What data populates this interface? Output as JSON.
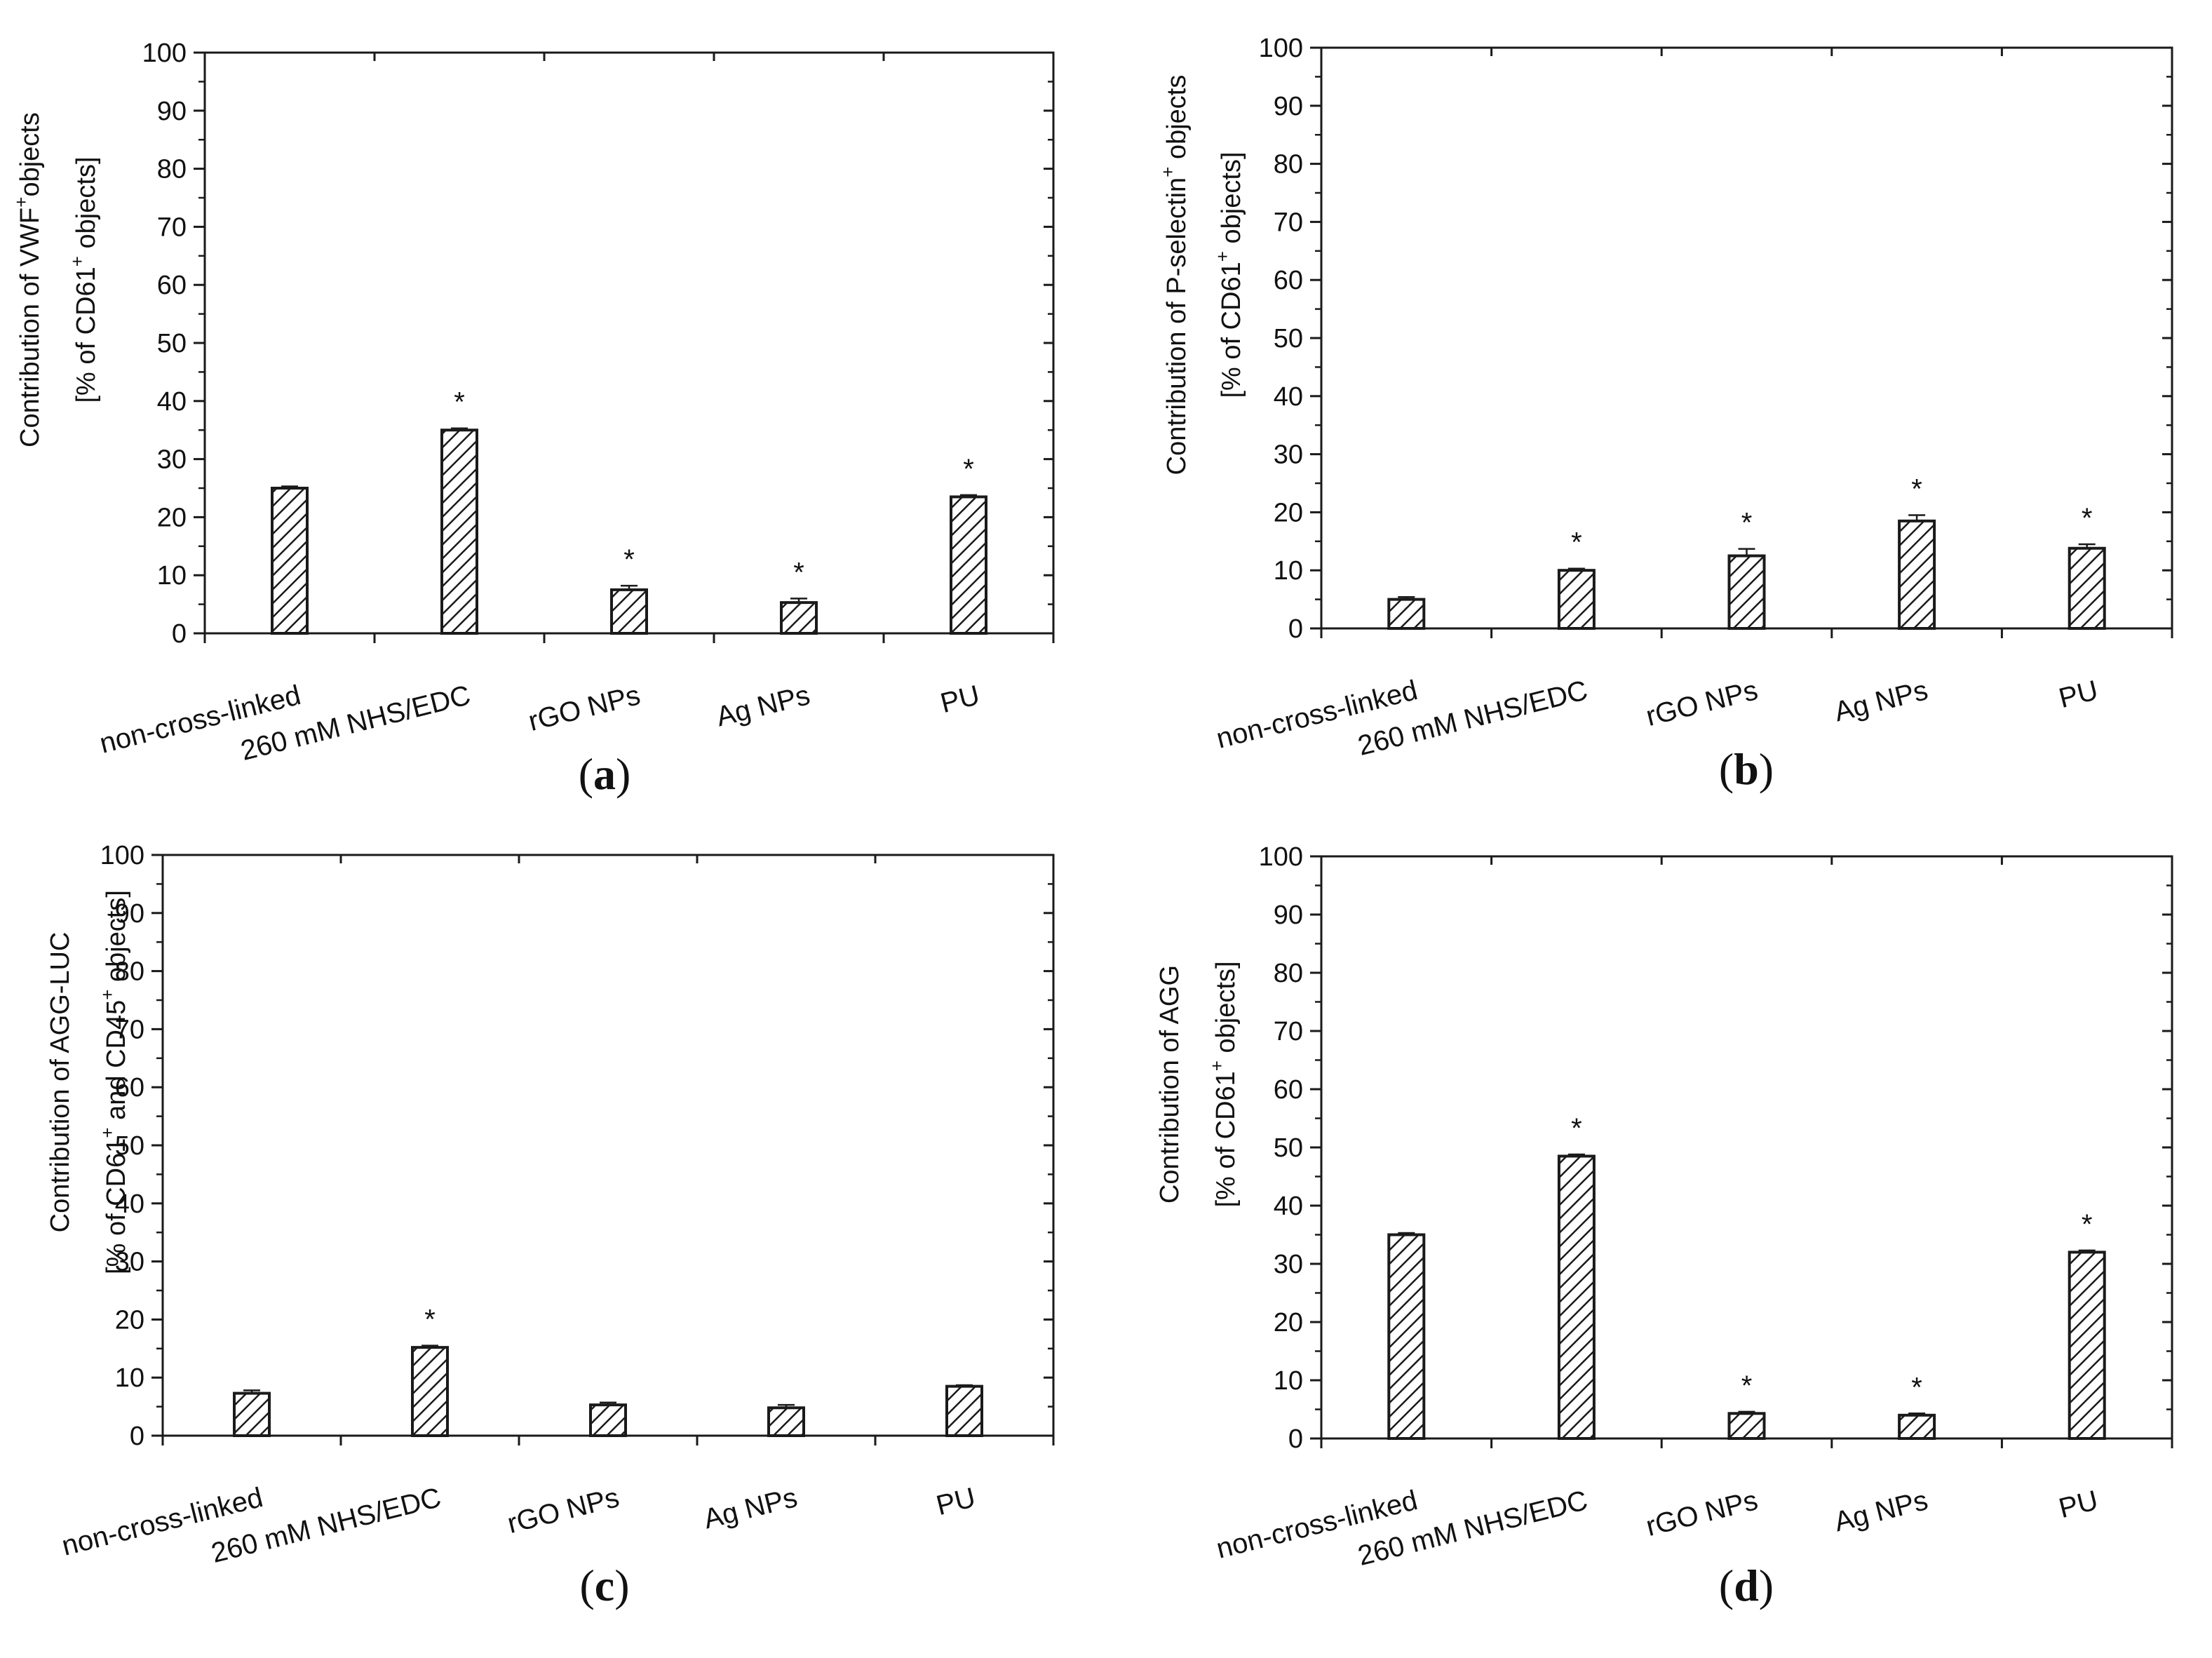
{
  "chart_data": [
    {
      "type": "bar",
      "panel_label": "a",
      "ylabel_line1": [
        "Contribution of VWF",
        "+",
        "objects"
      ],
      "ylabel_line2": [
        "[% of CD61",
        "+",
        " objects]"
      ],
      "categories": [
        "non-cross-linked",
        "260 mM NHS/EDC",
        "rGO NPs",
        "Ag NPs",
        "PU"
      ],
      "values": [
        25,
        35,
        7.5,
        5.3,
        23.5
      ],
      "errors": [
        0.3,
        0.3,
        0.7,
        0.7,
        0.3
      ],
      "significant": [
        false,
        true,
        true,
        true,
        true
      ],
      "significance_marker": "*",
      "ylim": [
        0,
        100
      ],
      "yticks": [
        0,
        10,
        20,
        30,
        40,
        50,
        60,
        70,
        80,
        90,
        100
      ]
    },
    {
      "type": "bar",
      "panel_label": "b",
      "ylabel_line1": [
        "Contribution of P-selectin",
        "+",
        " objects"
      ],
      "ylabel_line2": [
        "[% of CD61",
        "+",
        " objects]"
      ],
      "categories": [
        "non-cross-linked",
        "260 mM NHS/EDC",
        "rGO NPs",
        "Ag NPs",
        "PU"
      ],
      "values": [
        5,
        10,
        12.5,
        18.5,
        13.8
      ],
      "errors": [
        0.4,
        0.3,
        1.2,
        1.0,
        0.7
      ],
      "significant": [
        false,
        true,
        true,
        true,
        true
      ],
      "significance_marker": "*",
      "ylim": [
        0,
        100
      ],
      "yticks": [
        0,
        10,
        20,
        30,
        40,
        50,
        60,
        70,
        80,
        90,
        100
      ]
    },
    {
      "type": "bar",
      "panel_label": "c",
      "ylabel_line1": [
        "Contribution of AGG-LUC",
        "",
        ""
      ],
      "ylabel_line2": [
        "[% of CD61",
        "+",
        " and CD45",
        "+",
        " objects]"
      ],
      "categories": [
        "non-cross-linked",
        "260 mM NHS/EDC",
        "rGO NPs",
        "Ag NPs",
        "PU"
      ],
      "values": [
        7.3,
        15.2,
        5.3,
        4.8,
        8.5
      ],
      "errors": [
        0.5,
        0.3,
        0.4,
        0.5,
        0.2
      ],
      "significant": [
        false,
        true,
        false,
        false,
        false
      ],
      "significance_marker": "*",
      "ylim": [
        0,
        100
      ],
      "yticks": [
        0,
        10,
        20,
        30,
        40,
        50,
        60,
        70,
        80,
        90,
        100
      ]
    },
    {
      "type": "bar",
      "panel_label": "d",
      "ylabel_line1": [
        "Contribution of AGG",
        "",
        ""
      ],
      "ylabel_line2": [
        "[% of CD61",
        "+",
        " objects]"
      ],
      "categories": [
        "non-cross-linked",
        "260 mM NHS/EDC",
        "rGO NPs",
        "Ag NPs",
        "PU"
      ],
      "values": [
        35,
        48.5,
        4.3,
        4,
        32
      ],
      "errors": [
        0.3,
        0.3,
        0.3,
        0.3,
        0.3
      ],
      "significant": [
        false,
        true,
        true,
        true,
        true
      ],
      "significance_marker": "*",
      "ylim": [
        0,
        100
      ],
      "yticks": [
        0,
        10,
        20,
        30,
        40,
        50,
        60,
        70,
        80,
        90,
        100
      ]
    }
  ],
  "style": {
    "axis_color": "#1a1a1a",
    "bar_fill": "#ffffff",
    "hatch_color": "#1a1a1a"
  }
}
